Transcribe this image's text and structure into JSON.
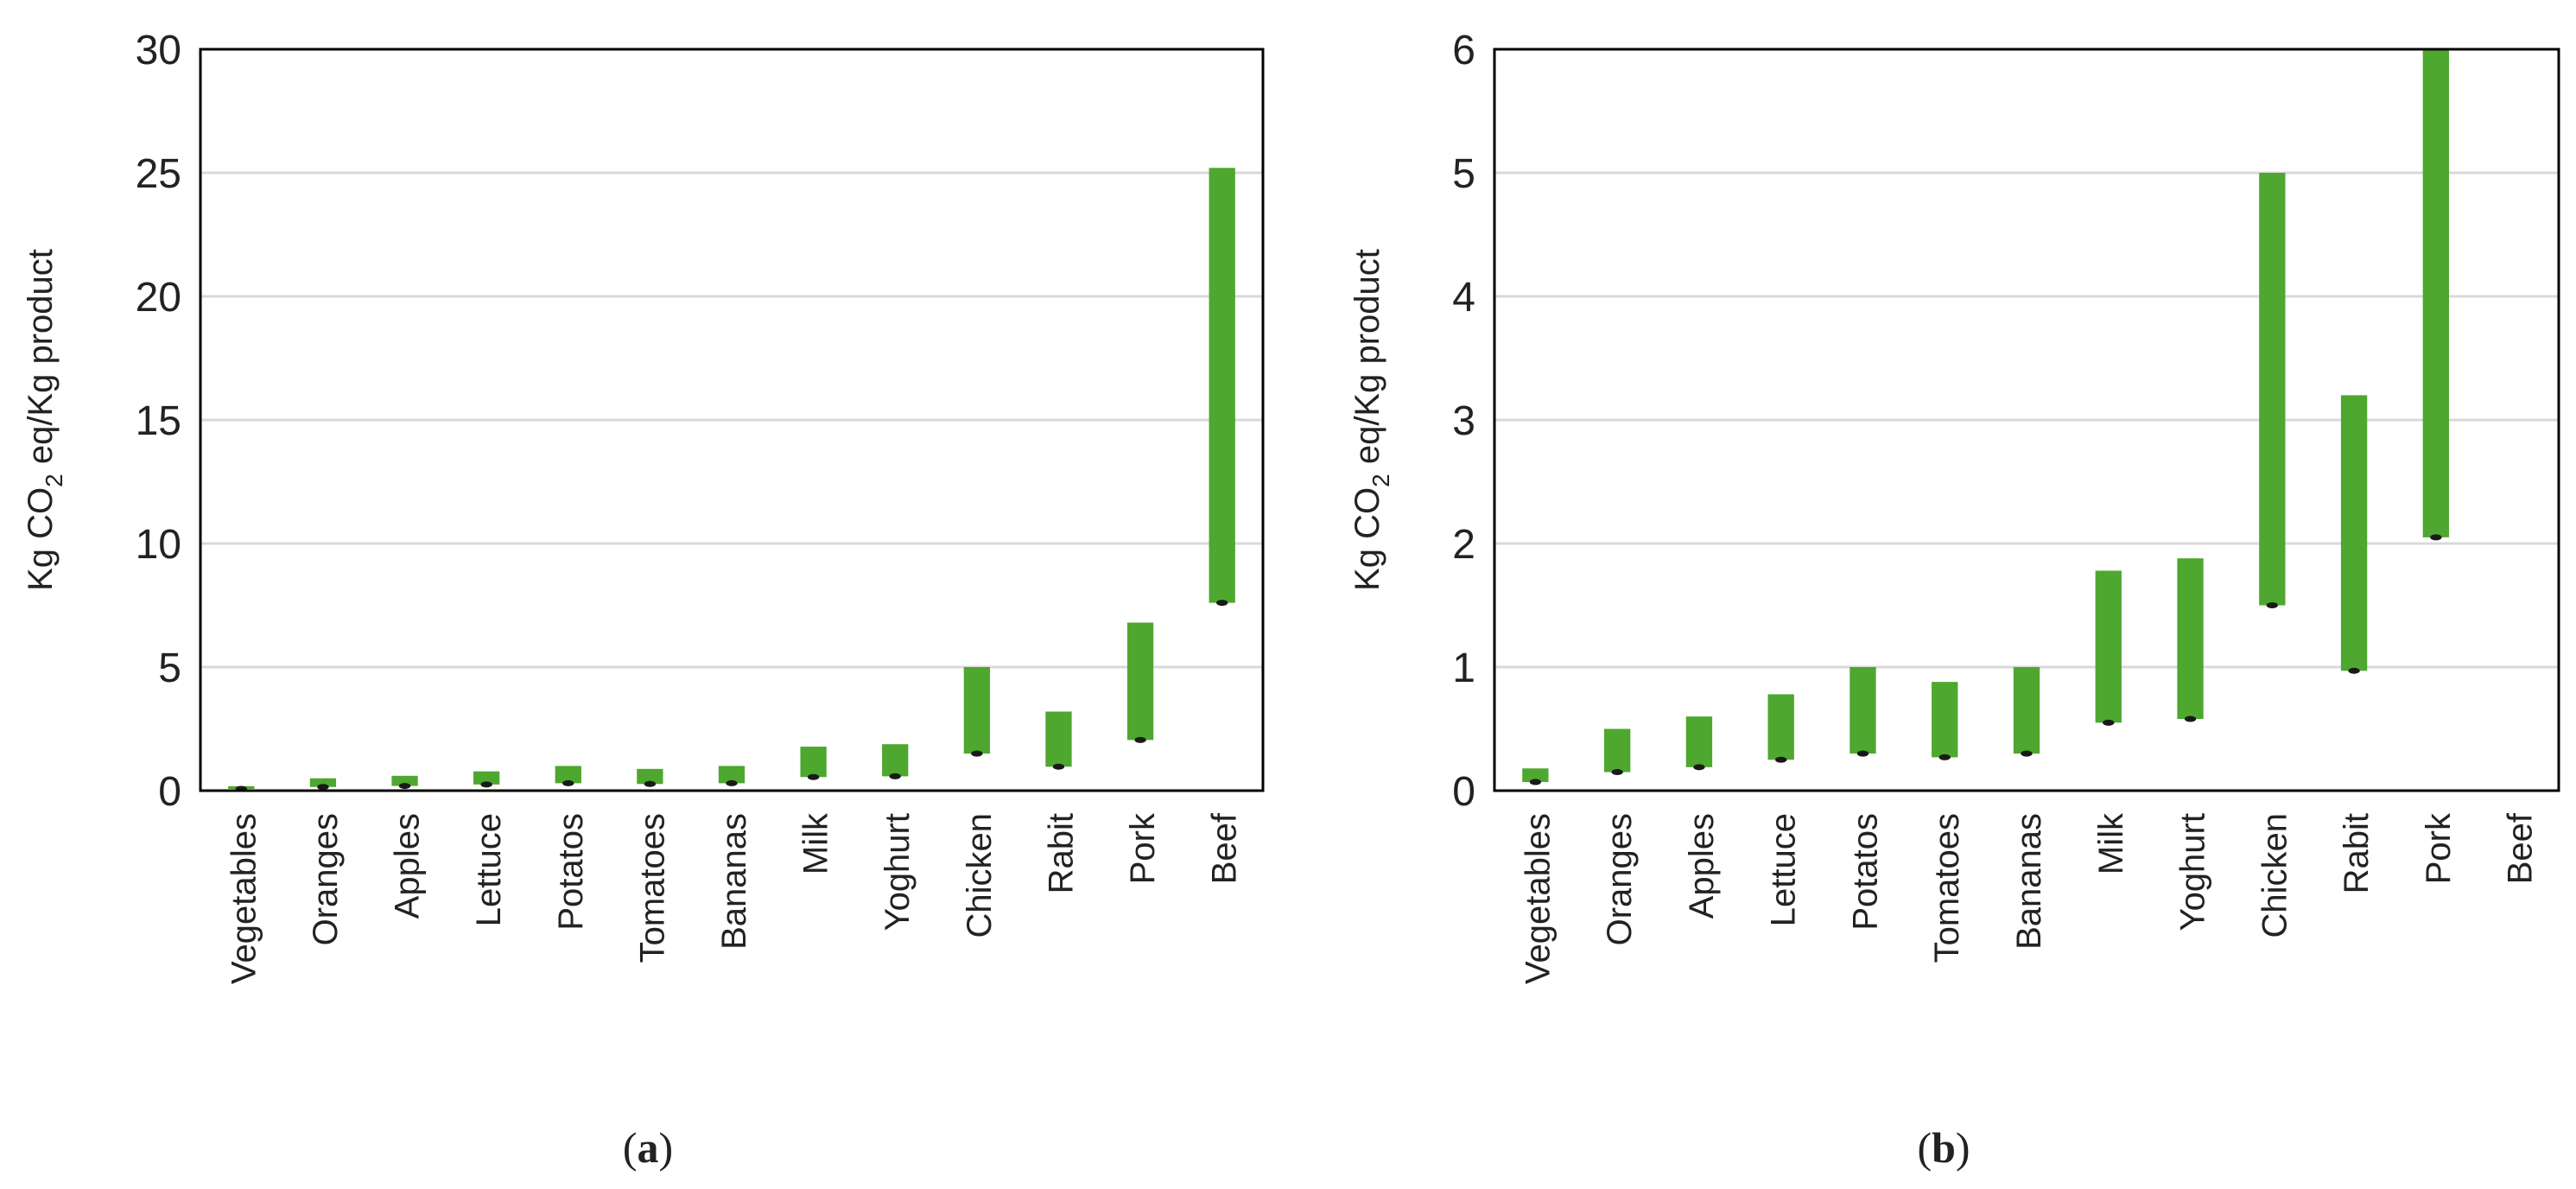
{
  "colors": {
    "bar": "#4ea72e",
    "grid": "#d9d9d9",
    "axis": "#000000",
    "dot": "#1a1a1a"
  },
  "chart_data": [
    {
      "type": "bar",
      "style": "floating range bars (min–max)",
      "panel_label_open": "(",
      "panel_label": "a",
      "panel_label_close": ")",
      "ylabel_prefix": "Kg CO",
      "ylabel_sub": "2",
      "ylabel_suffix": " eq/Kg product",
      "ylim": [
        0,
        30
      ],
      "yticks": [
        0,
        5,
        10,
        15,
        20,
        25,
        30
      ],
      "grid": true,
      "categories": [
        "Vegetables",
        "Oranges",
        "Apples",
        "Lettuce",
        "Potatos",
        "Tomatoes",
        "Bananas",
        "Milk",
        "Yoghurt",
        "Chicken",
        "Rabit",
        "Pork",
        "Beef"
      ],
      "series": [
        {
          "low": [
            0.07,
            0.15,
            0.19,
            0.25,
            0.3,
            0.27,
            0.3,
            0.55,
            0.58,
            1.5,
            0.97,
            2.05,
            7.6
          ],
          "high": [
            0.18,
            0.5,
            0.6,
            0.78,
            1.0,
            0.88,
            1.0,
            1.78,
            1.88,
            5.0,
            3.2,
            6.8,
            25.2
          ]
        }
      ]
    },
    {
      "type": "bar",
      "style": "floating range bars (min–max)",
      "panel_label_open": "(",
      "panel_label": "b",
      "panel_label_close": ")",
      "ylabel_prefix": "Kg CO",
      "ylabel_sub": "2",
      "ylabel_suffix": " eq/Kg product",
      "ylim": [
        0,
        6
      ],
      "yticks": [
        0,
        1,
        2,
        3,
        4,
        5,
        6
      ],
      "grid": true,
      "categories": [
        "Vegetables",
        "Oranges",
        "Apples",
        "Lettuce",
        "Potatos",
        "Tomatoes",
        "Bananas",
        "Milk",
        "Yoghurt",
        "Chicken",
        "Rabit",
        "Pork",
        "Beef"
      ],
      "series": [
        {
          "low": [
            0.07,
            0.15,
            0.19,
            0.25,
            0.3,
            0.27,
            0.3,
            0.55,
            0.58,
            1.5,
            0.97,
            2.05,
            null
          ],
          "high": [
            0.18,
            0.5,
            0.6,
            0.78,
            1.0,
            0.88,
            1.0,
            1.78,
            1.88,
            5.0,
            3.2,
            6.0,
            null
          ]
        }
      ]
    }
  ]
}
